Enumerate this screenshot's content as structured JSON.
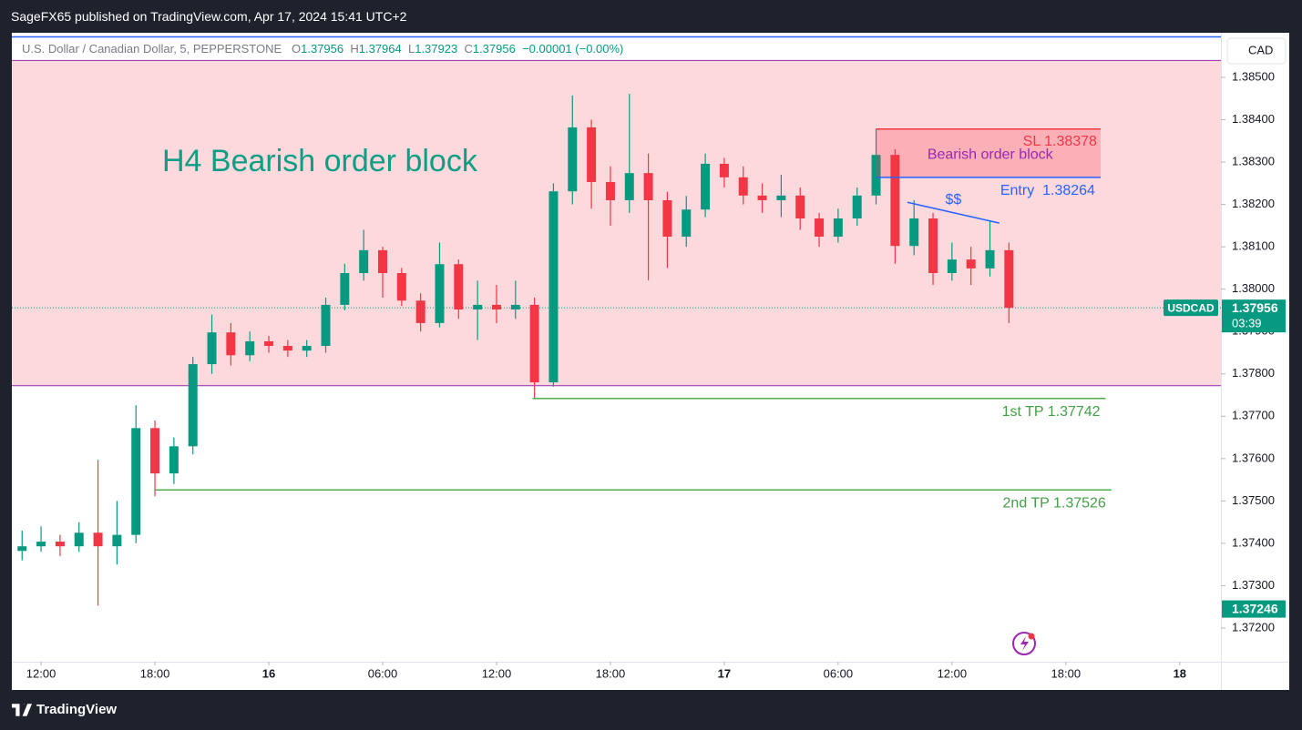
{
  "header": {
    "title": "SageFX65 published on TradingView.com, Apr 17, 2024 15:41 UTC+2"
  },
  "legend": {
    "symbol": "U.S. Dollar / Canadian Dollar, 5, PEPPERSTONE",
    "items": [
      {
        "key": "O",
        "value": "1.37956"
      },
      {
        "key": "H",
        "value": "1.37964"
      },
      {
        "key": "L",
        "value": "1.37923"
      },
      {
        "key": "C",
        "value": "1.37956"
      }
    ],
    "change": "−0.00001 (−0.00%)"
  },
  "footer": {
    "brand": "TradingView"
  },
  "chart_data": {
    "type": "candlestick",
    "currency": "CAD",
    "up_color": "#089981",
    "down_color": "#f23645",
    "x": [
      11,
      12,
      13,
      14,
      15,
      16,
      17,
      18,
      19,
      20,
      21,
      22,
      23,
      24,
      25,
      26,
      27,
      28,
      29,
      30,
      31,
      32,
      33,
      34,
      35,
      36,
      37,
      38,
      39,
      40,
      41,
      42,
      43,
      44,
      45,
      46,
      47,
      48,
      49,
      50,
      51,
      52,
      53,
      54,
      55,
      56,
      57,
      58,
      59,
      60,
      61,
      62,
      63
    ],
    "open": [
      1.37382,
      1.37393,
      1.37404,
      1.37393,
      1.37425,
      1.37393,
      1.3742,
      1.37672,
      1.37565,
      1.37629,
      1.37823,
      1.37898,
      1.37844,
      1.37877,
      1.37866,
      1.37855,
      1.37866,
      1.37963,
      1.38038,
      1.38092,
      1.38038,
      1.37973,
      1.3792,
      1.38059,
      1.37952,
      1.37963,
      1.37952,
      1.37963,
      1.3778,
      1.38231,
      1.38382,
      1.38253,
      1.3821,
      1.38274,
      1.3821,
      1.38124,
      1.38188,
      1.38296,
      1.38264,
      1.38221,
      1.3821,
      1.38221,
      1.38167,
      1.38124,
      1.38167,
      1.38221,
      1.38317,
      1.38102,
      1.38167,
      1.38038,
      1.3807,
      1.38049,
      1.38092
    ],
    "high": [
      1.3743,
      1.3744,
      1.3742,
      1.3745,
      1.37597,
      1.375,
      1.37726,
      1.3769,
      1.3765,
      1.3784,
      1.3794,
      1.3792,
      1.379,
      1.3789,
      1.3788,
      1.3788,
      1.3798,
      1.3806,
      1.3814,
      1.381,
      1.3805,
      1.3799,
      1.3811,
      1.3807,
      1.3802,
      1.3801,
      1.3802,
      1.3798,
      1.3825,
      1.38457,
      1.384,
      1.3829,
      1.38461,
      1.3832,
      1.3823,
      1.3822,
      1.3832,
      1.3831,
      1.3829,
      1.3825,
      1.3827,
      1.3824,
      1.3818,
      1.3819,
      1.3824,
      1.38378,
      1.3833,
      1.3821,
      1.3818,
      1.3811,
      1.381,
      1.3816,
      1.3811
    ],
    "low": [
      1.3736,
      1.3738,
      1.3737,
      1.3738,
      1.37253,
      1.3735,
      1.374,
      1.37511,
      1.3754,
      1.3761,
      1.378,
      1.3782,
      1.3783,
      1.3785,
      1.3784,
      1.3784,
      1.3785,
      1.3795,
      1.3802,
      1.3798,
      1.3796,
      1.379,
      1.3791,
      1.3793,
      1.3788,
      1.3792,
      1.3793,
      1.37743,
      1.3777,
      1.382,
      1.3819,
      1.3815,
      1.3818,
      1.38021,
      1.3805,
      1.381,
      1.3817,
      1.3824,
      1.382,
      1.3818,
      1.3817,
      1.3814,
      1.381,
      1.3811,
      1.3815,
      1.382,
      1.3806,
      1.3808,
      1.3801,
      1.3802,
      1.3801,
      1.3803,
      1.3792
    ],
    "close": [
      1.37393,
      1.37404,
      1.37393,
      1.37425,
      1.37393,
      1.3742,
      1.37672,
      1.37565,
      1.37629,
      1.37823,
      1.37898,
      1.37844,
      1.37877,
      1.37866,
      1.37855,
      1.37866,
      1.37963,
      1.38038,
      1.38092,
      1.38038,
      1.37973,
      1.3792,
      1.38059,
      1.37952,
      1.37963,
      1.37952,
      1.37963,
      1.3778,
      1.38231,
      1.38382,
      1.38253,
      1.3821,
      1.38274,
      1.3821,
      1.38124,
      1.38188,
      1.38296,
      1.38264,
      1.38221,
      1.3821,
      1.38221,
      1.38167,
      1.38124,
      1.38167,
      1.38221,
      1.38317,
      1.38102,
      1.38167,
      1.38038,
      1.3807,
      1.38049,
      1.38092,
      1.37956
    ],
    "xlim": [
      10.46,
      74.17
    ],
    "xticks": [
      {
        "value": 12,
        "label": "12:00"
      },
      {
        "value": 18,
        "label": "18:00"
      },
      {
        "value": 24,
        "label": "16"
      },
      {
        "value": 30,
        "label": "06:00"
      },
      {
        "value": 36,
        "label": "12:00"
      },
      {
        "value": 42,
        "label": "18:00"
      },
      {
        "value": 48,
        "label": "17"
      },
      {
        "value": 54,
        "label": "06:00"
      },
      {
        "value": 60,
        "label": "12:00"
      },
      {
        "value": 66,
        "label": "18:00"
      },
      {
        "value": 72,
        "label": "18"
      }
    ],
    "ylim": [
      1.37056,
      1.38601
    ],
    "yticks": [
      {
        "value": 1.372,
        "label": "1.37200"
      },
      {
        "value": 1.373,
        "label": "1.37300"
      },
      {
        "value": 1.374,
        "label": "1.37400"
      },
      {
        "value": 1.375,
        "label": "1.37500"
      },
      {
        "value": 1.376,
        "label": "1.37600"
      },
      {
        "value": 1.377,
        "label": "1.37700"
      },
      {
        "value": 1.378,
        "label": "1.37800"
      },
      {
        "value": 1.379,
        "label": "1.37900"
      },
      {
        "value": 1.38,
        "label": "1.38000"
      },
      {
        "value": 1.381,
        "label": "1.38100"
      },
      {
        "value": 1.382,
        "label": "1.38200"
      },
      {
        "value": 1.383,
        "label": "1.38300"
      },
      {
        "value": 1.384,
        "label": "1.38400"
      },
      {
        "value": 1.385,
        "label": "1.38500"
      }
    ],
    "last_price": {
      "symbol": "USDCAD",
      "value": 1.37956,
      "label": "1.37956",
      "countdown": "03:39",
      "color": "#089981"
    },
    "low_marker": {
      "value": 1.37246,
      "label": "1.37246"
    },
    "zone": {
      "label": "H4 Bearish order block",
      "top": 1.3854,
      "bottom": 1.37772,
      "color": "#fcd9dc"
    },
    "order_block": {
      "label": "Bearish order block",
      "x0": 56,
      "x1": 67.83,
      "top": 1.38378,
      "bottom": 1.38264,
      "sl_label": "SL 1.38378",
      "entry_label": "Entry  1.38264"
    },
    "targets": [
      {
        "label": "1st TP 1.37742",
        "value": 1.37742,
        "x0": 37.9,
        "x1": 68.1
      },
      {
        "label": "2nd TP 1.37526",
        "value": 1.37526,
        "x0": 18,
        "x1": 68.4
      }
    ],
    "liquidity": {
      "label": "$$",
      "x": [
        57.65,
        62.5
      ],
      "values": [
        1.38205,
        1.38156
      ]
    }
  }
}
